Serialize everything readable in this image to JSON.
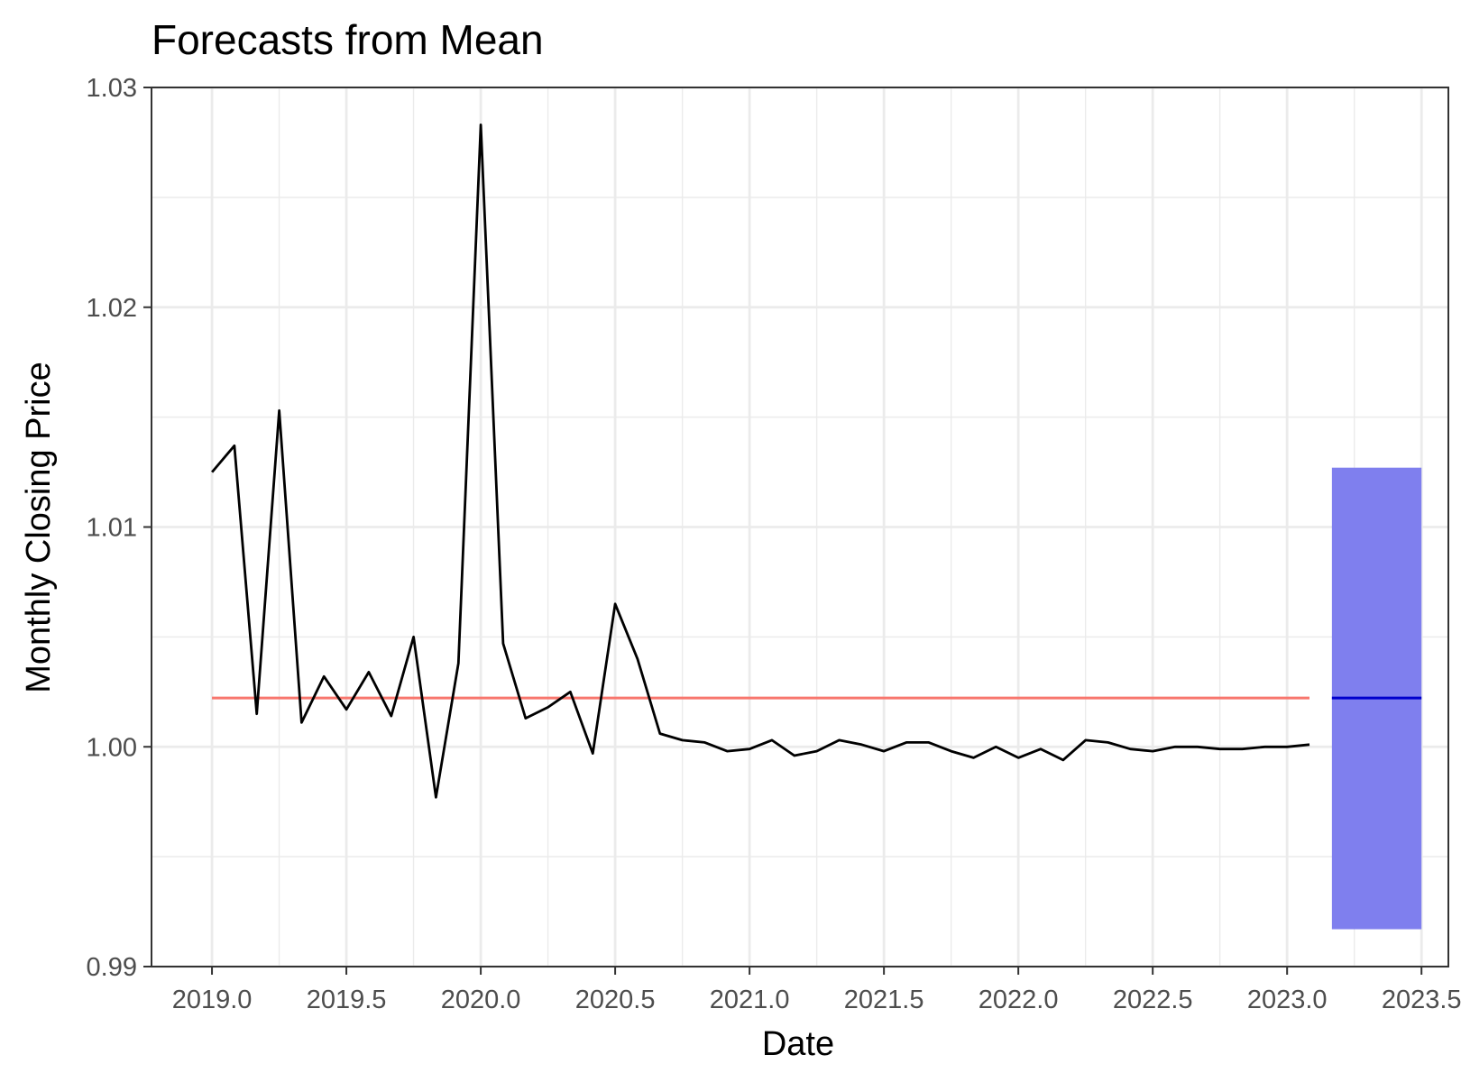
{
  "chart_data": {
    "type": "line",
    "title": "Forecasts from Mean",
    "xlabel": "Date",
    "ylabel": "Monthly Closing Price",
    "xlim": [
      2018.775,
      2023.6
    ],
    "ylim": [
      0.99,
      1.03
    ],
    "x_ticks": [
      "2019.0",
      "2019.5",
      "2020.0",
      "2020.5",
      "2021.0",
      "2021.5",
      "2022.0",
      "2022.5",
      "2023.0",
      "2023.5"
    ],
    "y_ticks": [
      "0.99",
      "1.00",
      "1.01",
      "1.02",
      "1.03"
    ],
    "grid": true,
    "legend": "none",
    "series": [
      {
        "x": [
          2019.0,
          2019.0833,
          2019.1667,
          2019.25,
          2019.3333,
          2019.4167,
          2019.5,
          2019.5833,
          2019.6667,
          2019.75,
          2019.8333,
          2019.9167,
          2020.0,
          2020.0833,
          2020.1667,
          2020.25,
          2020.3333,
          2020.4167,
          2020.5,
          2020.5833,
          2020.6667,
          2020.75,
          2020.8333,
          2020.9167,
          2021.0,
          2021.0833,
          2021.1667,
          2021.25,
          2021.3333,
          2021.4167,
          2021.5,
          2021.5833,
          2021.6667,
          2021.75,
          2021.8333,
          2021.9167,
          2022.0,
          2022.0833,
          2022.1667,
          2022.25,
          2022.3333,
          2022.4167,
          2022.5,
          2022.5833,
          2022.6667,
          2022.75,
          2022.8333,
          2022.9167,
          2023.0,
          2023.0833
        ],
        "values": [
          1.0125,
          1.0137,
          1.0015,
          1.0153,
          1.0011,
          1.0032,
          1.0017,
          1.0034,
          1.0014,
          1.005,
          0.9977,
          1.0038,
          1.0283,
          1.0047,
          1.0013,
          1.0018,
          1.0025,
          0.9997,
          1.0065,
          1.004,
          1.0006,
          1.0003,
          1.0002,
          0.9998,
          0.9999,
          1.0003,
          0.9996,
          0.9998,
          1.0003,
          1.0001,
          0.9998,
          1.0002,
          1.0002,
          0.9998,
          0.9995,
          1.0,
          0.9995,
          0.9999,
          0.9994,
          1.0003,
          1.0002,
          0.9999,
          0.9998,
          1.0,
          1.0,
          0.9999,
          0.9999,
          1.0,
          1.0,
          1.0001
        ],
        "color": "#000000"
      }
    ],
    "fitted_mean": {
      "value": 1.00222,
      "x_start": 2019.0,
      "x_end": 2023.0833,
      "color": "#f8766d"
    },
    "forecast": {
      "x_start": 2023.1667,
      "x_end": 2023.5,
      "mean": 1.00222,
      "lower": 0.9917,
      "upper": 1.0127,
      "band_color": "#7f7fee",
      "line_color": "#0000cd"
    }
  }
}
